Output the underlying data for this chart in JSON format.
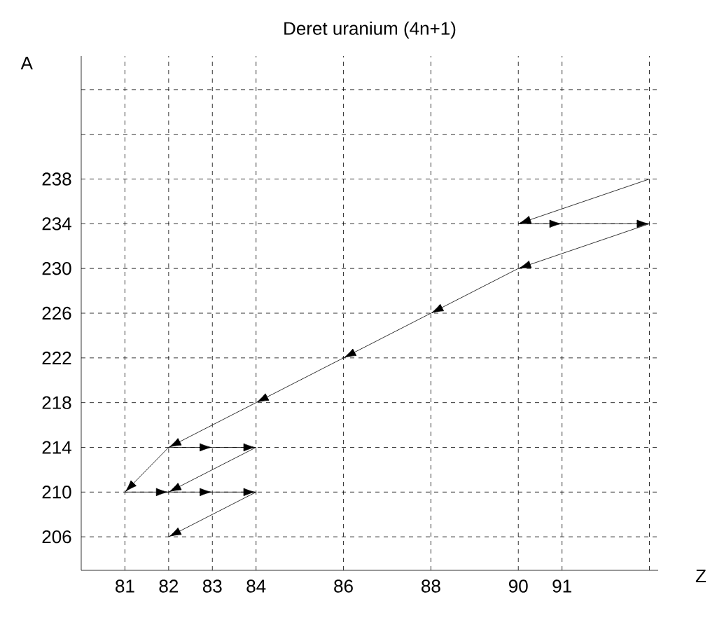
{
  "chart_data": {
    "type": "line",
    "title": "Deret uranium (4n+1)",
    "xlabel": "Z",
    "ylabel": "A",
    "xlim": [
      80,
      93.2
    ],
    "ylim": [
      203,
      249
    ],
    "xticks": [
      81,
      82,
      83,
      84,
      86,
      88,
      90,
      91,
      {
        "value": 93,
        "label": null
      }
    ],
    "yticks": [
      206,
      210,
      214,
      218,
      222,
      226,
      230,
      234,
      238,
      {
        "value": 242,
        "label": null
      },
      {
        "value": 246,
        "label": null
      }
    ],
    "grid": true,
    "line_style": "solid",
    "marker": "none",
    "series": [
      {
        "color": "#000000",
        "x": [
          93,
          90
        ],
        "values": [
          238,
          234
        ]
      },
      {
        "color": "#000000",
        "x": [
          90,
          91
        ],
        "values": [
          234,
          234
        ]
      },
      {
        "color": "#000000",
        "x": [
          91,
          93
        ],
        "values": [
          234,
          234
        ]
      },
      {
        "color": "#000000",
        "x": [
          93,
          90
        ],
        "values": [
          234,
          230
        ]
      },
      {
        "color": "#000000",
        "x": [
          90,
          88
        ],
        "values": [
          230,
          226
        ]
      },
      {
        "color": "#000000",
        "x": [
          88,
          86
        ],
        "values": [
          226,
          222
        ]
      },
      {
        "color": "#000000",
        "x": [
          86,
          84
        ],
        "values": [
          222,
          218
        ]
      },
      {
        "color": "#000000",
        "x": [
          84,
          82
        ],
        "values": [
          218,
          214
        ]
      },
      {
        "color": "#000000",
        "x": [
          82,
          83
        ],
        "values": [
          214,
          214
        ]
      },
      {
        "color": "#000000",
        "x": [
          83,
          84
        ],
        "values": [
          214,
          214
        ]
      },
      {
        "color": "#000000",
        "x": [
          84,
          82
        ],
        "values": [
          214,
          210
        ]
      },
      {
        "color": "#000000",
        "x": [
          82,
          81
        ],
        "values": [
          214,
          210
        ]
      },
      {
        "color": "#000000",
        "x": [
          81,
          82
        ],
        "values": [
          210,
          210
        ]
      },
      {
        "color": "#000000",
        "x": [
          82,
          83
        ],
        "values": [
          210,
          210
        ]
      },
      {
        "color": "#000000",
        "x": [
          83,
          84
        ],
        "values": [
          210,
          210
        ]
      },
      {
        "color": "#000000",
        "x": [
          84,
          82
        ],
        "values": [
          210,
          206
        ]
      }
    ]
  }
}
